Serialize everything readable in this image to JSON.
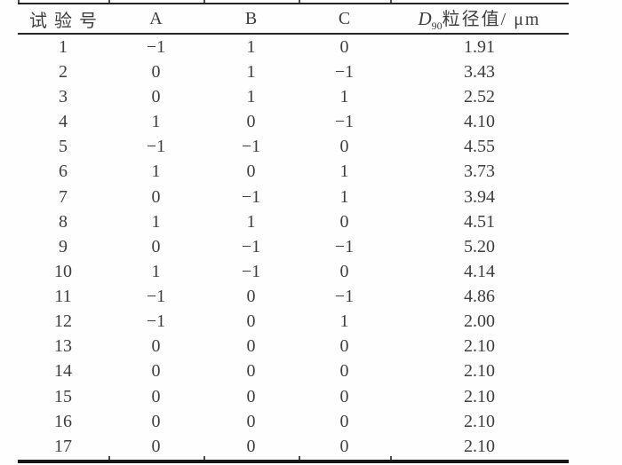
{
  "page": {
    "background_color": "#fefefe",
    "text_color": "#3d3d3d",
    "rule_color": "#262626"
  },
  "table": {
    "headers": {
      "run": "试验号",
      "a": "A",
      "b": "B",
      "c": "C",
      "d90": {
        "symbol": "D",
        "subscript": "90",
        "label": "粒径值/ μm"
      }
    },
    "rows": [
      [
        "1",
        "−1",
        "1",
        "0",
        "1.91"
      ],
      [
        "2",
        "0",
        "1",
        "−1",
        "3.43"
      ],
      [
        "3",
        "0",
        "1",
        "1",
        "2.52"
      ],
      [
        "4",
        "1",
        "0",
        "−1",
        "4.10"
      ],
      [
        "5",
        "−1",
        "−1",
        "0",
        "4.55"
      ],
      [
        "6",
        "1",
        "0",
        "1",
        "3.73"
      ],
      [
        "7",
        "0",
        "−1",
        "1",
        "3.94"
      ],
      [
        "8",
        "1",
        "1",
        "0",
        "4.51"
      ],
      [
        "9",
        "0",
        "−1",
        "−1",
        "5.20"
      ],
      [
        "10",
        "1",
        "−1",
        "0",
        "4.14"
      ],
      [
        "11",
        "−1",
        "0",
        "−1",
        "4.86"
      ],
      [
        "12",
        "−1",
        "0",
        "1",
        "2.00"
      ],
      [
        "13",
        "0",
        "0",
        "0",
        "2.10"
      ],
      [
        "14",
        "0",
        "0",
        "0",
        "2.10"
      ],
      [
        "15",
        "0",
        "0",
        "0",
        "2.10"
      ],
      [
        "16",
        "0",
        "0",
        "0",
        "2.10"
      ],
      [
        "17",
        "0",
        "0",
        "0",
        "2.10"
      ]
    ]
  }
}
